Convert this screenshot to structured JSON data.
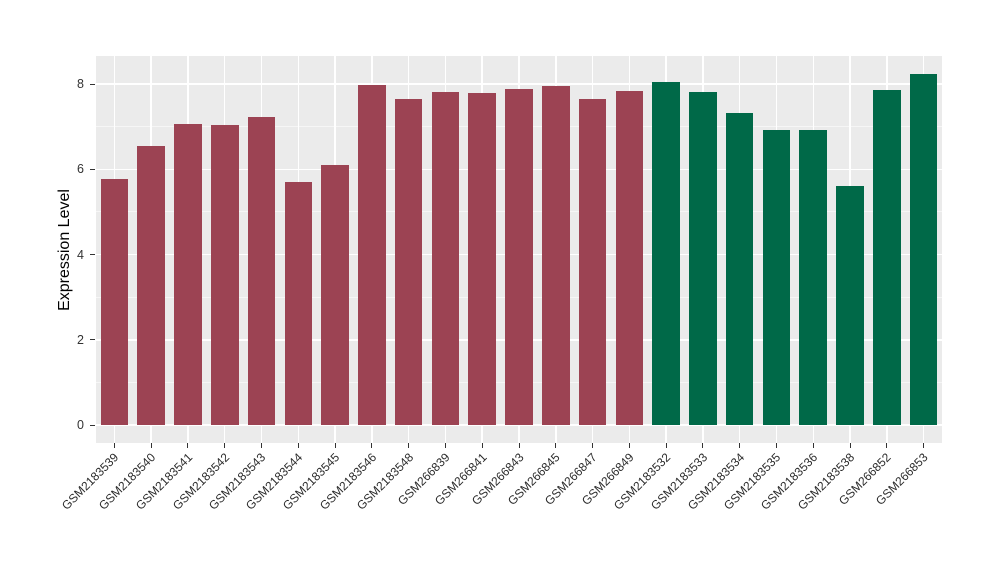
{
  "chart_data": {
    "type": "bar",
    "title": "",
    "xlabel": "",
    "ylabel": "Expression Level",
    "categories": [
      "GSM2183539",
      "GSM2183540",
      "GSM2183541",
      "GSM2183542",
      "GSM2183543",
      "GSM2183544",
      "GSM2183545",
      "GSM2183546",
      "GSM2183548",
      "GSM266839",
      "GSM266841",
      "GSM266843",
      "GSM266845",
      "GSM266847",
      "GSM266849",
      "GSM2183532",
      "GSM2183533",
      "GSM2183534",
      "GSM2183535",
      "GSM2183536",
      "GSM2183538",
      "GSM266852",
      "GSM266853"
    ],
    "values": [
      5.77,
      6.55,
      7.07,
      7.05,
      7.22,
      5.7,
      6.1,
      7.97,
      7.64,
      7.81,
      7.79,
      7.88,
      7.95,
      7.64,
      7.83,
      8.04,
      7.81,
      7.33,
      6.92,
      6.92,
      5.6,
      7.87,
      8.24
    ],
    "bar_groups": [
      0,
      0,
      0,
      0,
      0,
      0,
      0,
      0,
      0,
      0,
      0,
      0,
      0,
      0,
      0,
      1,
      1,
      1,
      1,
      1,
      1,
      1,
      1
    ],
    "group_colors": [
      "#9C4353",
      "#006948"
    ],
    "ylim": [
      -0.42,
      8.66
    ],
    "yticks": [
      0,
      2,
      4,
      6,
      8
    ],
    "yticks_minor": [
      1,
      3,
      5,
      7
    ],
    "legend": "none",
    "grid": "on",
    "panel_bg": "#EBEBEB",
    "major_grid_color": "#FFFFFF",
    "minor_grid_color": "rgba(255,255,255,0.55)",
    "tick_color": "#333333"
  }
}
